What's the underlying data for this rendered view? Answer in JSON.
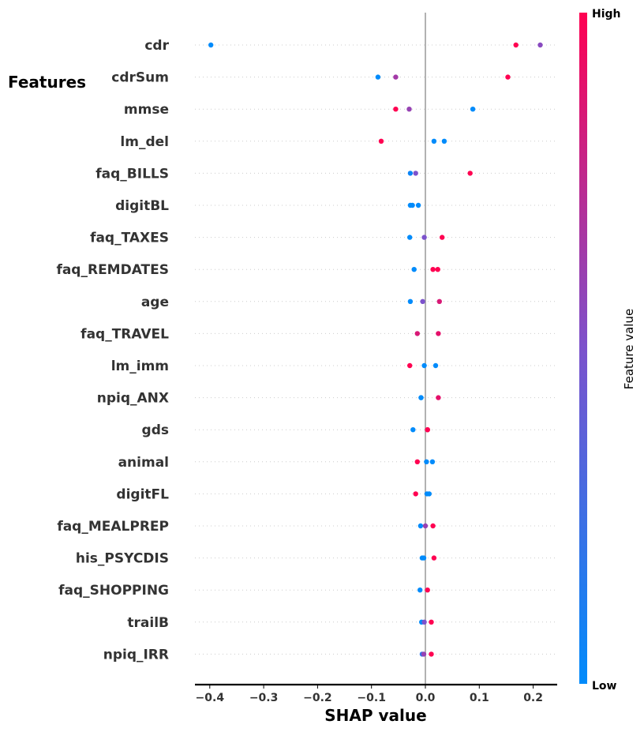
{
  "chart_data": {
    "type": "scatter",
    "subtype": "shap-beeswarm",
    "features_heading": "Features",
    "xlabel": "SHAP value",
    "xlim": [
      -0.43,
      0.245
    ],
    "xticks": [
      -0.4,
      -0.3,
      -0.2,
      -0.1,
      0.0,
      0.1,
      0.2
    ],
    "xtick_labels": [
      "−0.4",
      "−0.3",
      "−0.2",
      "−0.1",
      "0.0",
      "0.1",
      "0.2"
    ],
    "grid": "dotted horizontal row guides",
    "colorbar": {
      "label": "Feature value",
      "high_label": "High",
      "low_label": "Low",
      "low_color": "#008bfb",
      "mid_color": "#7c52cc",
      "high_color": "#ff0051"
    },
    "features": [
      {
        "name": "cdr",
        "points": [
          {
            "x": -0.398,
            "v": 0.0
          },
          {
            "x": 0.168,
            "v": 1.0
          },
          {
            "x": 0.213,
            "v": 0.55
          }
        ]
      },
      {
        "name": "cdrSum",
        "points": [
          {
            "x": -0.088,
            "v": 0.0
          },
          {
            "x": -0.055,
            "v": 0.65
          },
          {
            "x": 0.153,
            "v": 1.0
          }
        ]
      },
      {
        "name": "mmse",
        "points": [
          {
            "x": -0.055,
            "v": 1.0
          },
          {
            "x": -0.03,
            "v": 0.6
          },
          {
            "x": 0.088,
            "v": 0.0
          }
        ]
      },
      {
        "name": "lm_del",
        "points": [
          {
            "x": -0.082,
            "v": 1.0
          },
          {
            "x": 0.016,
            "v": 0.0
          },
          {
            "x": 0.035,
            "v": 0.0
          }
        ]
      },
      {
        "name": "faq_BILLS",
        "points": [
          {
            "x": -0.028,
            "v": 0.05
          },
          {
            "x": -0.018,
            "v": 0.5
          },
          {
            "x": 0.083,
            "v": 1.0
          }
        ]
      },
      {
        "name": "digitBL",
        "points": [
          {
            "x": -0.028,
            "v": 0.0
          },
          {
            "x": -0.024,
            "v": 0.0
          },
          {
            "x": -0.013,
            "v": 0.0
          }
        ]
      },
      {
        "name": "faq_TAXES",
        "points": [
          {
            "x": -0.029,
            "v": 0.0
          },
          {
            "x": -0.002,
            "v": 0.5
          },
          {
            "x": 0.031,
            "v": 1.0
          }
        ]
      },
      {
        "name": "faq_REMDATES",
        "points": [
          {
            "x": -0.021,
            "v": 0.0
          },
          {
            "x": 0.014,
            "v": 1.0
          },
          {
            "x": 0.023,
            "v": 1.0
          }
        ]
      },
      {
        "name": "age",
        "points": [
          {
            "x": -0.028,
            "v": 0.0
          },
          {
            "x": -0.005,
            "v": 0.5
          },
          {
            "x": 0.026,
            "v": 0.85
          }
        ]
      },
      {
        "name": "faq_TRAVEL",
        "points": [
          {
            "x": -0.015,
            "v": 0.85
          },
          {
            "x": 0.024,
            "v": 0.9
          }
        ]
      },
      {
        "name": "lm_imm",
        "points": [
          {
            "x": -0.029,
            "v": 1.0
          },
          {
            "x": -0.002,
            "v": 0.0
          },
          {
            "x": 0.019,
            "v": 0.0
          }
        ]
      },
      {
        "name": "npiq_ANX",
        "points": [
          {
            "x": -0.008,
            "v": 0.0
          },
          {
            "x": -0.008,
            "v": 0.0
          },
          {
            "x": 0.024,
            "v": 0.9
          }
        ]
      },
      {
        "name": "gds",
        "points": [
          {
            "x": -0.023,
            "v": 0.0
          },
          {
            "x": 0.004,
            "v": 1.0
          },
          {
            "x": 0.004,
            "v": 1.0
          }
        ]
      },
      {
        "name": "animal",
        "points": [
          {
            "x": -0.015,
            "v": 1.0
          },
          {
            "x": 0.002,
            "v": 0.0
          },
          {
            "x": 0.013,
            "v": 0.0
          }
        ]
      },
      {
        "name": "digitFL",
        "points": [
          {
            "x": -0.018,
            "v": 1.0
          },
          {
            "x": 0.003,
            "v": 0.0
          },
          {
            "x": 0.007,
            "v": 0.0
          }
        ]
      },
      {
        "name": "faq_MEALPREP",
        "points": [
          {
            "x": -0.009,
            "v": 0.0
          },
          {
            "x": 0.0,
            "v": 0.6
          },
          {
            "x": 0.014,
            "v": 1.0
          }
        ]
      },
      {
        "name": "his_PSYCDIS",
        "points": [
          {
            "x": -0.006,
            "v": 0.0
          },
          {
            "x": -0.003,
            "v": 0.0
          },
          {
            "x": 0.016,
            "v": 1.0
          }
        ]
      },
      {
        "name": "faq_SHOPPING",
        "points": [
          {
            "x": -0.01,
            "v": 0.0
          },
          {
            "x": 0.004,
            "v": 1.0
          }
        ]
      },
      {
        "name": "trailB",
        "points": [
          {
            "x": -0.007,
            "v": 0.0
          },
          {
            "x": -0.002,
            "v": 0.5
          },
          {
            "x": 0.011,
            "v": 1.0
          }
        ]
      },
      {
        "name": "npiq_IRR",
        "points": [
          {
            "x": -0.006,
            "v": 0.2
          },
          {
            "x": -0.003,
            "v": 0.6
          },
          {
            "x": 0.011,
            "v": 1.0
          }
        ]
      }
    ]
  }
}
